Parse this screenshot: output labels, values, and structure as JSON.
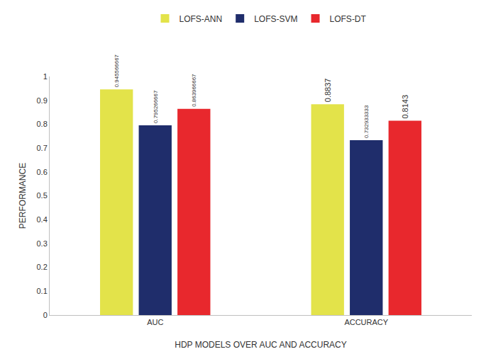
{
  "chart_data": {
    "type": "bar",
    "categories": [
      "AUC",
      "ACCURACY"
    ],
    "series": [
      {
        "name": "LOFS-ANN",
        "color": "#e3e34a",
        "values": [
          0.945566667,
          0.8837
        ]
      },
      {
        "name": "LOFS-SVM",
        "color": "#1f2d6b",
        "values": [
          0.795266667,
          0.732933333
        ]
      },
      {
        "name": "LOFS-DT",
        "color": "#e8282d",
        "values": [
          0.863966667,
          0.8143
        ]
      }
    ],
    "xlabel": "HDP MODELS OVER AUC AND ACCURACY",
    "ylabel": "PERFORMANCE",
    "ylim": [
      0,
      1
    ],
    "yticks": [
      0,
      0.1,
      0.2,
      0.3,
      0.4,
      0.5,
      0.6,
      0.7,
      0.8,
      0.9,
      1
    ],
    "grid": false,
    "legend": "top",
    "data_labels": true
  }
}
